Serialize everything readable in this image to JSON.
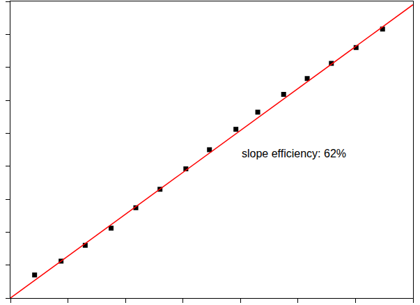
{
  "chart_data": {
    "type": "scatter",
    "annotations": [
      "slope efficiency: 62%"
    ],
    "series": [
      {
        "type": "scatter",
        "color": "#000000",
        "marker": "square",
        "x": [
          0.42,
          0.88,
          1.3,
          1.75,
          2.18,
          2.6,
          3.05,
          3.46,
          3.92,
          4.3,
          4.75,
          5.16,
          5.58,
          6.01,
          6.47
        ],
        "values": [
          0.35,
          0.56,
          0.8,
          1.06,
          1.37,
          1.65,
          1.96,
          2.25,
          2.56,
          2.82,
          3.09,
          3.33,
          3.56,
          3.8,
          4.08
        ]
      },
      {
        "type": "line",
        "color": "#ff0000",
        "line_style": "solid",
        "x": [
          0,
          7
        ],
        "values": [
          0,
          4.45
        ]
      }
    ],
    "xlim": [
      0,
      7
    ],
    "xticks": [
      0,
      1,
      2,
      3,
      4,
      5,
      6,
      7
    ],
    "ylim": [
      0,
      4.5
    ],
    "yticks": [
      0,
      0.5,
      1,
      1.5,
      2,
      2.5,
      3,
      3.5,
      4,
      4.5
    ],
    "tick_labels": false,
    "grid": false
  }
}
